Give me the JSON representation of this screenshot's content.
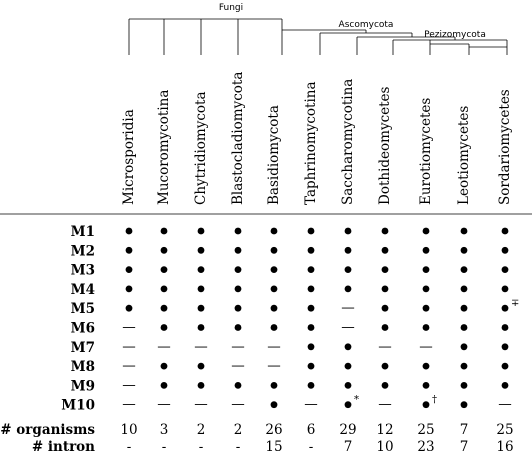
{
  "clades": {
    "fungi": "Fungi",
    "ascomycota": "Ascomycota",
    "pezizomycota": "Pezizomycota"
  },
  "taxa": [
    "Microsporidia",
    "Mucoromycotina",
    "Chytridiomycota",
    "Blastocladiomycota",
    "Basidiomycota",
    "Taphrinomycotina",
    "Saccharomycotina",
    "Dothideomycetes",
    "Eurotiomycetes",
    "Leotiomycetes",
    "Sordariomycetes"
  ],
  "rows": [
    {
      "label": "M1",
      "cells": [
        "dot",
        "dot",
        "dot",
        "dot",
        "dot",
        "dot",
        "dot",
        "dot",
        "dot",
        "dot",
        "dot"
      ]
    },
    {
      "label": "M2",
      "cells": [
        "dot",
        "dot",
        "dot",
        "dot",
        "dot",
        "dot",
        "dot",
        "dot",
        "dot",
        "dot",
        "dot"
      ]
    },
    {
      "label": "M3",
      "cells": [
        "dot",
        "dot",
        "dot",
        "dot",
        "dot",
        "dot",
        "dot",
        "dot",
        "dot",
        "dot",
        "dot"
      ]
    },
    {
      "label": "M4",
      "cells": [
        "dot",
        "dot",
        "dot",
        "dot",
        "dot",
        "dot",
        "dot",
        "dot",
        "dot",
        "dot",
        "dot"
      ]
    },
    {
      "label": "M5",
      "cells": [
        "dot",
        "dot",
        "dot",
        "dot",
        "dot",
        "dot",
        "dash",
        "dot",
        "dot",
        "dot",
        "dot"
      ]
    },
    {
      "label": "M6",
      "cells": [
        "dash",
        "dot",
        "dot",
        "dot",
        "dot",
        "dot",
        "dash",
        "dot",
        "dot",
        "dot",
        "dot"
      ]
    },
    {
      "label": "M7",
      "cells": [
        "dash",
        "dash",
        "dash",
        "dash",
        "dash",
        "dot",
        "dot",
        "dash",
        "dash",
        "dot",
        "dot"
      ]
    },
    {
      "label": "M8",
      "cells": [
        "dash",
        "dot",
        "dot",
        "dash",
        "dash",
        "dot",
        "dot",
        "dot",
        "dot",
        "dot",
        "dot"
      ]
    },
    {
      "label": "M9",
      "cells": [
        "dash",
        "dot",
        "dot",
        "dot",
        "dot",
        "dot",
        "dot",
        "dot",
        "dot",
        "dot",
        "dot"
      ]
    },
    {
      "label": "M10",
      "cells": [
        "dash",
        "dash",
        "dash",
        "dash",
        "dot",
        "dash",
        "dot",
        "dash",
        "dot",
        "dot",
        "dash"
      ]
    }
  ],
  "notes": [
    {
      "row": 4,
      "col": 10,
      "symbol": "∓"
    },
    {
      "row": 9,
      "col": 6,
      "symbol": "*"
    },
    {
      "row": 9,
      "col": 8,
      "symbol": "†"
    }
  ],
  "symbols": {
    "dash": "—"
  },
  "summary": [
    {
      "label": "# organisms",
      "values": [
        "10",
        "3",
        "2",
        "2",
        "26",
        "6",
        "29",
        "12",
        "25",
        "7",
        "25"
      ]
    },
    {
      "label": "# intron",
      "values": [
        "-",
        "-",
        "-",
        "-",
        "15",
        "-",
        "7",
        "10",
        "23",
        "7",
        "16"
      ]
    }
  ]
}
